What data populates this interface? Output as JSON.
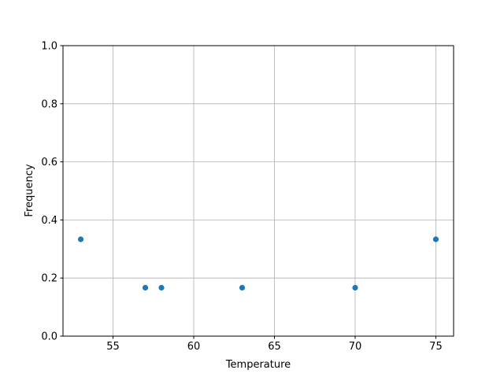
{
  "chart_data": {
    "type": "scatter",
    "title": "",
    "xlabel": "Temperature",
    "ylabel": "Frequency",
    "x": [
      53,
      57,
      58,
      63,
      70,
      75
    ],
    "y": [
      0.3333,
      0.1667,
      0.1667,
      0.1667,
      0.1667,
      0.3333
    ],
    "xlim": [
      51.9,
      76.1
    ],
    "ylim": [
      0.0,
      1.0
    ],
    "xticks": [
      55,
      60,
      65,
      70,
      75
    ],
    "xtick_labels": [
      "55",
      "60",
      "65",
      "70",
      "75"
    ],
    "yticks": [
      0.0,
      0.2,
      0.4,
      0.6,
      0.8,
      1.0
    ],
    "ytick_labels": [
      "0.0",
      "0.2",
      "0.4",
      "0.6",
      "0.8",
      "1.0"
    ],
    "grid": true,
    "marker_color": "#1f77b4"
  }
}
